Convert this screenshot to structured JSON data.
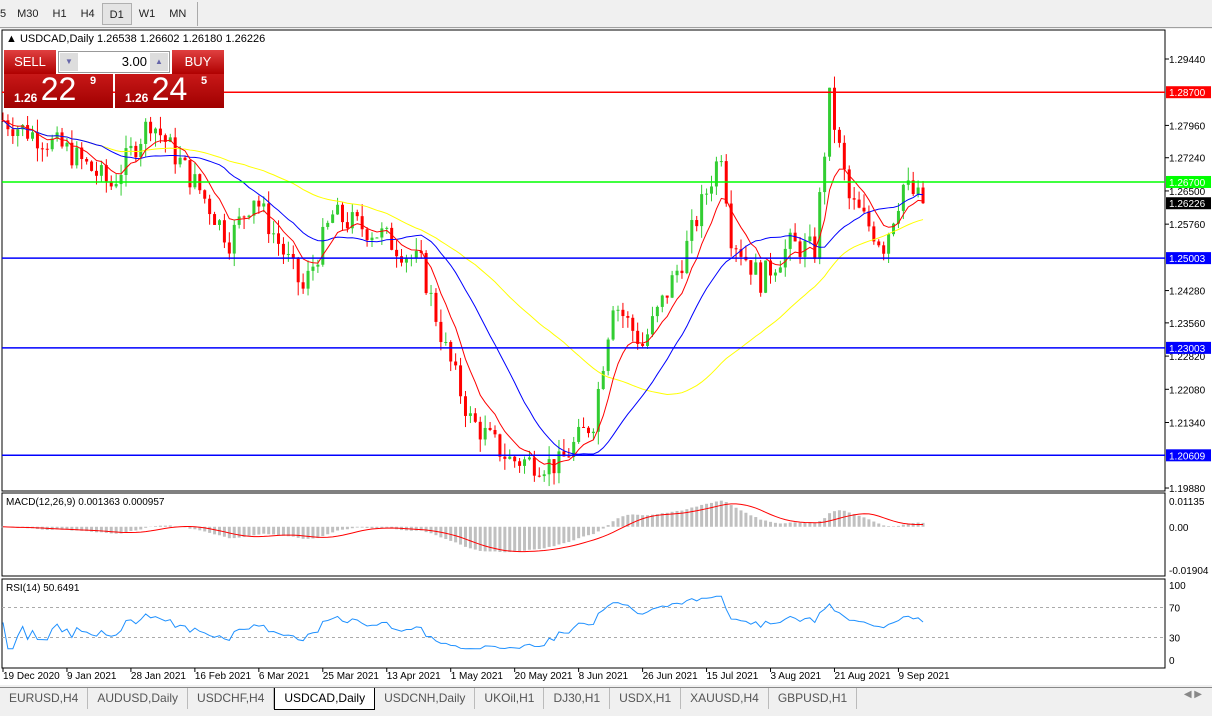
{
  "toolbar": {
    "timeframes": [
      "5",
      "M30",
      "H1",
      "H4",
      "D1",
      "W1",
      "MN"
    ],
    "active": "D1"
  },
  "chart": {
    "header": "USDCAD,Daily  1.26538 1.26602 1.26180 1.26226",
    "header_icon": "triangle-up-icon",
    "trade_panel": {
      "sell_label": "SELL",
      "buy_label": "BUY",
      "lot": "3.00",
      "sell_prefix": "1.26",
      "sell_big": "22",
      "sell_sup": "9",
      "buy_prefix": "1.26",
      "buy_big": "24",
      "buy_sup": "5"
    },
    "colors": {
      "bull": "#32cd32",
      "bear": "#ff0000",
      "ma_fast": "#ff0000",
      "ma_mid": "#0000ff",
      "ma_slow": "#ffff00",
      "macd_hist": "#c0c0c0",
      "macd_signal": "#ff0000",
      "rsi": "#1e90ff"
    }
  },
  "chart_data": {
    "type": "candlestick",
    "symbol": "USDCAD",
    "timeframe": "Daily",
    "price_ticks": [
      "1.29440",
      "1.27960",
      "1.27240",
      "1.26500",
      "1.25760",
      "1.24280",
      "1.23560",
      "1.22820",
      "1.22080",
      "1.21340",
      "1.19880"
    ],
    "ylim": [
      1.1988,
      1.2944
    ],
    "last_price": "1.26226",
    "levels": [
      {
        "value": "1.28700",
        "color": "#ff0000"
      },
      {
        "value": "1.26700",
        "color": "#00ff00"
      },
      {
        "value": "1.25003",
        "color": "#0000ff"
      },
      {
        "value": "1.23003",
        "color": "#0000ff"
      },
      {
        "value": "1.20609",
        "color": "#0000ff"
      }
    ],
    "x_labels": [
      "19 Dec 2020",
      "9 Jan 2021",
      "28 Jan 2021",
      "16 Feb 2021",
      "6 Mar 2021",
      "25 Mar 2021",
      "13 Apr 2021",
      "1 May 2021",
      "20 May 2021",
      "8 Jun 2021",
      "26 Jun 2021",
      "15 Jul 2021",
      "3 Aug 2021",
      "21 Aug 2021",
      "9 Sep 2021"
    ],
    "close_path": [
      [
        0,
        1.2808
      ],
      [
        13,
        1.2741
      ],
      [
        22,
        1.2663
      ],
      [
        30,
        1.2808
      ],
      [
        40,
        1.2652
      ],
      [
        46,
        1.254
      ],
      [
        51,
        1.264
      ],
      [
        61,
        1.2429
      ],
      [
        67,
        1.2596
      ],
      [
        77,
        1.2552
      ],
      [
        85,
        1.2485
      ],
      [
        90,
        1.2296
      ],
      [
        95,
        1.214
      ],
      [
        103,
        1.2051
      ],
      [
        113,
        1.204
      ],
      [
        120,
        1.214
      ],
      [
        124,
        1.2407
      ],
      [
        130,
        1.2307
      ],
      [
        138,
        1.2496
      ],
      [
        146,
        1.2741
      ],
      [
        148,
        1.2552
      ],
      [
        154,
        1.2452
      ],
      [
        160,
        1.253
      ],
      [
        165,
        1.2518
      ],
      [
        168,
        1.2853
      ],
      [
        172,
        1.263
      ],
      [
        179,
        1.253
      ],
      [
        183,
        1.2663
      ],
      [
        187,
        1.2623
      ]
    ],
    "macd": {
      "label": "MACD(12,26,9) 0.001363 0.000957",
      "ticks": [
        "0.01135",
        "0.00",
        "-0.01904"
      ],
      "range": [
        -0.01904,
        0.01135
      ]
    },
    "rsi": {
      "label": "RSI(14) 50.6491",
      "ticks": [
        "100",
        "70",
        "30",
        "0"
      ],
      "levels": [
        70,
        30
      ]
    }
  },
  "tabs": [
    "EURUSD,H4",
    "AUDUSD,Daily",
    "USDCHF,H4",
    "USDCAD,Daily",
    "USDCNH,Daily",
    "UKOil,H1",
    "DJ30,H1",
    "USDX,H1",
    "XAUUSD,H4",
    "GBPUSD,H1"
  ],
  "active_tab": "USDCAD,Daily"
}
